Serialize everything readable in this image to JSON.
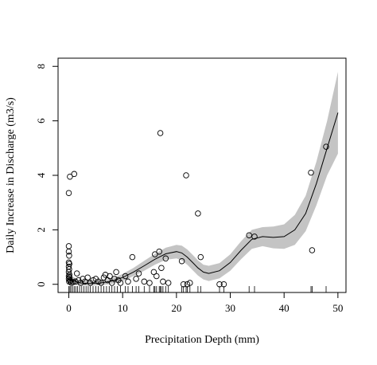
{
  "chart_data": {
    "type": "scatter",
    "title": "",
    "xlabel": "Precipitation Depth (mm)",
    "ylabel": "Daily Increase in Discharge (m3/s)",
    "xlim": [
      -2,
      51.5
    ],
    "ylim": [
      -0.3,
      8.3
    ],
    "x_ticks": [
      0,
      10,
      20,
      30,
      40,
      50
    ],
    "y_ticks": [
      0,
      2,
      4,
      6,
      8
    ],
    "grid": false,
    "legend": "none",
    "points": [
      {
        "x": 0.0,
        "y": 3.35
      },
      {
        "x": 0.2,
        "y": 3.95
      },
      {
        "x": 1.0,
        "y": 4.05
      },
      {
        "x": 0.0,
        "y": 1.4
      },
      {
        "x": 0.0,
        "y": 1.2
      },
      {
        "x": 0.05,
        "y": 1.05
      },
      {
        "x": 0.0,
        "y": 0.8
      },
      {
        "x": 0.1,
        "y": 0.75
      },
      {
        "x": 0.0,
        "y": 0.65
      },
      {
        "x": 0.05,
        "y": 0.55
      },
      {
        "x": 0.0,
        "y": 0.45
      },
      {
        "x": 0.1,
        "y": 0.35
      },
      {
        "x": 0.0,
        "y": 0.3
      },
      {
        "x": 0.15,
        "y": 0.25
      },
      {
        "x": 0.0,
        "y": 0.2
      },
      {
        "x": 0.2,
        "y": 0.15
      },
      {
        "x": 0.05,
        "y": 0.1
      },
      {
        "x": 0.3,
        "y": 0.1
      },
      {
        "x": 0.5,
        "y": 0.05
      },
      {
        "x": 0.8,
        "y": 0.08
      },
      {
        "x": 1.2,
        "y": 0.1
      },
      {
        "x": 1.5,
        "y": 0.4
      },
      {
        "x": 1.8,
        "y": 0.15
      },
      {
        "x": 2.2,
        "y": 0.05
      },
      {
        "x": 2.6,
        "y": 0.2
      },
      {
        "x": 3.0,
        "y": 0.1
      },
      {
        "x": 3.5,
        "y": 0.25
      },
      {
        "x": 4.0,
        "y": 0.05
      },
      {
        "x": 4.5,
        "y": 0.15
      },
      {
        "x": 5.0,
        "y": 0.2
      },
      {
        "x": 5.5,
        "y": 0.1
      },
      {
        "x": 6.0,
        "y": 0.05
      },
      {
        "x": 6.5,
        "y": 0.25
      },
      {
        "x": 6.8,
        "y": 0.35
      },
      {
        "x": 7.2,
        "y": 0.15
      },
      {
        "x": 7.6,
        "y": 0.3
      },
      {
        "x": 8.0,
        "y": 0.05
      },
      {
        "x": 8.5,
        "y": 0.2
      },
      {
        "x": 8.8,
        "y": 0.45
      },
      {
        "x": 9.2,
        "y": 0.15
      },
      {
        "x": 9.6,
        "y": 0.05
      },
      {
        "x": 10.5,
        "y": 0.3
      },
      {
        "x": 11.0,
        "y": 0.1
      },
      {
        "x": 11.8,
        "y": 1.0
      },
      {
        "x": 12.5,
        "y": 0.2
      },
      {
        "x": 13.0,
        "y": 0.4
      },
      {
        "x": 14.0,
        "y": 0.1
      },
      {
        "x": 15.0,
        "y": 0.05
      },
      {
        "x": 15.8,
        "y": 0.45
      },
      {
        "x": 16.0,
        "y": 1.1
      },
      {
        "x": 16.3,
        "y": 0.3
      },
      {
        "x": 16.8,
        "y": 1.2
      },
      {
        "x": 17.0,
        "y": 5.55
      },
      {
        "x": 17.2,
        "y": 0.6
      },
      {
        "x": 17.5,
        "y": 0.1
      },
      {
        "x": 18.0,
        "y": 0.95
      },
      {
        "x": 18.5,
        "y": 0.05
      },
      {
        "x": 21.0,
        "y": 0.85
      },
      {
        "x": 21.3,
        "y": 0.0
      },
      {
        "x": 21.8,
        "y": 4.0
      },
      {
        "x": 22.0,
        "y": 0.0
      },
      {
        "x": 22.5,
        "y": 0.05
      },
      {
        "x": 24.0,
        "y": 2.6
      },
      {
        "x": 24.5,
        "y": 1.0
      },
      {
        "x": 28.0,
        "y": 0.0
      },
      {
        "x": 28.8,
        "y": 0.0
      },
      {
        "x": 33.5,
        "y": 1.8
      },
      {
        "x": 34.5,
        "y": 1.75
      },
      {
        "x": 45.0,
        "y": 4.1
      },
      {
        "x": 45.2,
        "y": 1.25
      },
      {
        "x": 47.8,
        "y": 5.05
      }
    ],
    "smooth": {
      "x": [
        0,
        2,
        4,
        6,
        8,
        10,
        12,
        14,
        16,
        18,
        20,
        21,
        22,
        23,
        24,
        25,
        26,
        28,
        30,
        32,
        34,
        36,
        38,
        40,
        42,
        44,
        46,
        48,
        50
      ],
      "y": [
        0.2,
        0.05,
        0.03,
        0.05,
        0.12,
        0.25,
        0.45,
        0.68,
        0.92,
        1.12,
        1.2,
        1.15,
        1.0,
        0.8,
        0.6,
        0.45,
        0.4,
        0.5,
        0.8,
        1.25,
        1.65,
        1.75,
        1.72,
        1.75,
        2.0,
        2.6,
        3.7,
        5.0,
        6.3
      ],
      "lower": [
        0.05,
        -0.05,
        -0.05,
        -0.03,
        0.02,
        0.12,
        0.3,
        0.5,
        0.72,
        0.9,
        0.95,
        0.88,
        0.72,
        0.52,
        0.32,
        0.18,
        0.12,
        0.22,
        0.5,
        0.92,
        1.3,
        1.4,
        1.32,
        1.3,
        1.45,
        1.95,
        2.9,
        4.0,
        4.8
      ],
      "upper": [
        0.35,
        0.15,
        0.11,
        0.13,
        0.22,
        0.38,
        0.6,
        0.86,
        1.12,
        1.34,
        1.45,
        1.42,
        1.28,
        1.08,
        0.88,
        0.72,
        0.68,
        0.78,
        1.1,
        1.58,
        2.0,
        2.1,
        2.12,
        2.2,
        2.55,
        3.25,
        4.5,
        6.0,
        7.8
      ]
    },
    "rug_x": [
      0,
      0.2,
      0.4,
      0.7,
      1.0,
      1.3,
      1.6,
      2.0,
      2.4,
      2.8,
      3.2,
      3.6,
      4.0,
      4.5,
      5.0,
      5.5,
      6.0,
      6.5,
      7.0,
      7.5,
      8.0,
      8.5,
      9.0,
      9.6,
      10.5,
      11.0,
      11.8,
      12.5,
      13.0,
      14.0,
      15.0,
      15.8,
      16.0,
      16.3,
      16.8,
      17.0,
      17.2,
      17.5,
      18.0,
      18.5,
      21.0,
      21.3,
      21.8,
      22.0,
      22.5,
      24.0,
      24.5,
      28.0,
      28.8,
      33.5,
      34.5,
      45.0,
      45.2,
      47.8
    ]
  }
}
